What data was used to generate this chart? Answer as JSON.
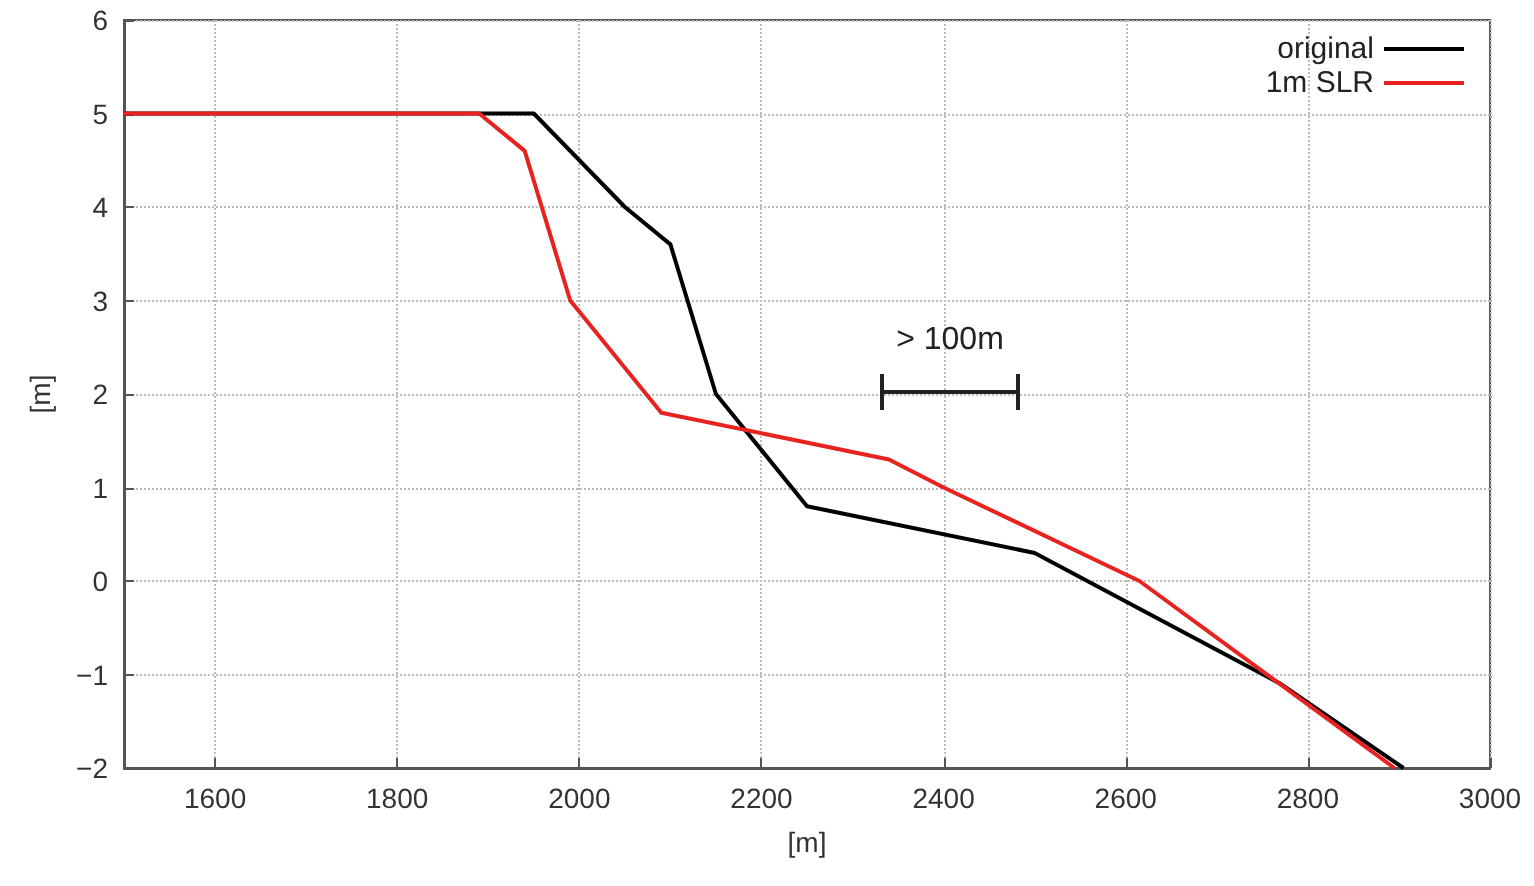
{
  "chart_data": {
    "type": "line",
    "xlabel": "[m]",
    "ylabel": "[m]",
    "xlim": [
      1500,
      3000
    ],
    "xticks": [
      1600,
      1800,
      2000,
      2200,
      2400,
      2600,
      2800,
      3000
    ],
    "ylim": [
      -2,
      6
    ],
    "yticks": [
      {
        "value": -2,
        "label": "−2"
      },
      {
        "value": -1,
        "label": "−1"
      },
      0,
      1,
      2,
      3,
      4,
      5,
      6
    ],
    "grid": true,
    "legend": "top right",
    "marker": "none",
    "line_style": "solid",
    "annotations": [
      "> 100m"
    ],
    "series": [
      {
        "name": "original",
        "color": "#000000",
        "x": [
          1500,
          1950,
          2050,
          2100,
          2150,
          2250,
          2500,
          2770,
          2905
        ],
        "values": [
          5,
          5,
          4,
          3.6,
          2,
          0.8,
          0.3,
          -1.1,
          -2
        ]
      },
      {
        "name": "1m SLR",
        "color": "#e8231f",
        "x": [
          1500,
          1890,
          1940,
          1990,
          2090,
          2340,
          2400,
          2615,
          2895
        ],
        "values": [
          5,
          5,
          4.6,
          3,
          1.8,
          1.3,
          1,
          0,
          -2
        ]
      }
    ]
  }
}
